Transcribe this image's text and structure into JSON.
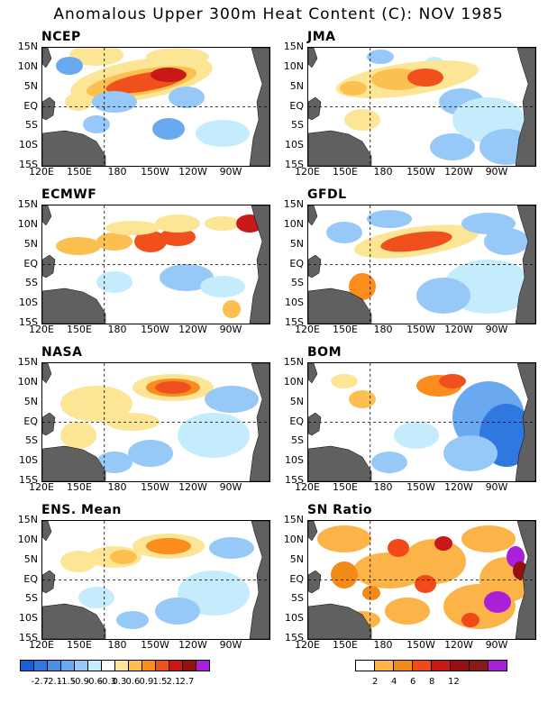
{
  "title": "Anomalous Upper 300m Heat Content (C): NOV 1985",
  "panels": [
    {
      "name": "NCEP"
    },
    {
      "name": "JMA"
    },
    {
      "name": "ECMWF"
    },
    {
      "name": "GFDL"
    },
    {
      "name": "NASA"
    },
    {
      "name": "BOM"
    },
    {
      "name": "ENS. Mean"
    },
    {
      "name": "SN Ratio"
    }
  ],
  "lat_labels": [
    "15N",
    "10N",
    "5N",
    "EQ",
    "5S",
    "10S",
    "15S"
  ],
  "lon_labels": [
    "120E",
    "150E",
    "180",
    "150W",
    "120W",
    "90W"
  ],
  "anomaly_colorbar": {
    "colors": [
      "#1a5fd8",
      "#2f78e0",
      "#4a90e8",
      "#6aa9f0",
      "#96c8f8",
      "#c4ecfc",
      "#ffffff",
      "#fce696",
      "#fcc050",
      "#fc8c1c",
      "#f0501c",
      "#c81818",
      "#961010",
      "#aa20d8"
    ],
    "labels": [
      "-2.7",
      "-2.1",
      "-1.5",
      "-0.9",
      "-0.6",
      "-0.3",
      "0.3",
      "0.6",
      "0.9",
      "1.5",
      "2.1",
      "2.7"
    ]
  },
  "sn_colorbar": {
    "colors": [
      "#ffffff",
      "#fcb448",
      "#f28a18",
      "#f04a18",
      "#c81818",
      "#961010",
      "#8a1a1a",
      "#aa20d8"
    ],
    "labels": [
      "2",
      "4",
      "6",
      "8",
      "12"
    ]
  },
  "land_color": "#606060"
}
